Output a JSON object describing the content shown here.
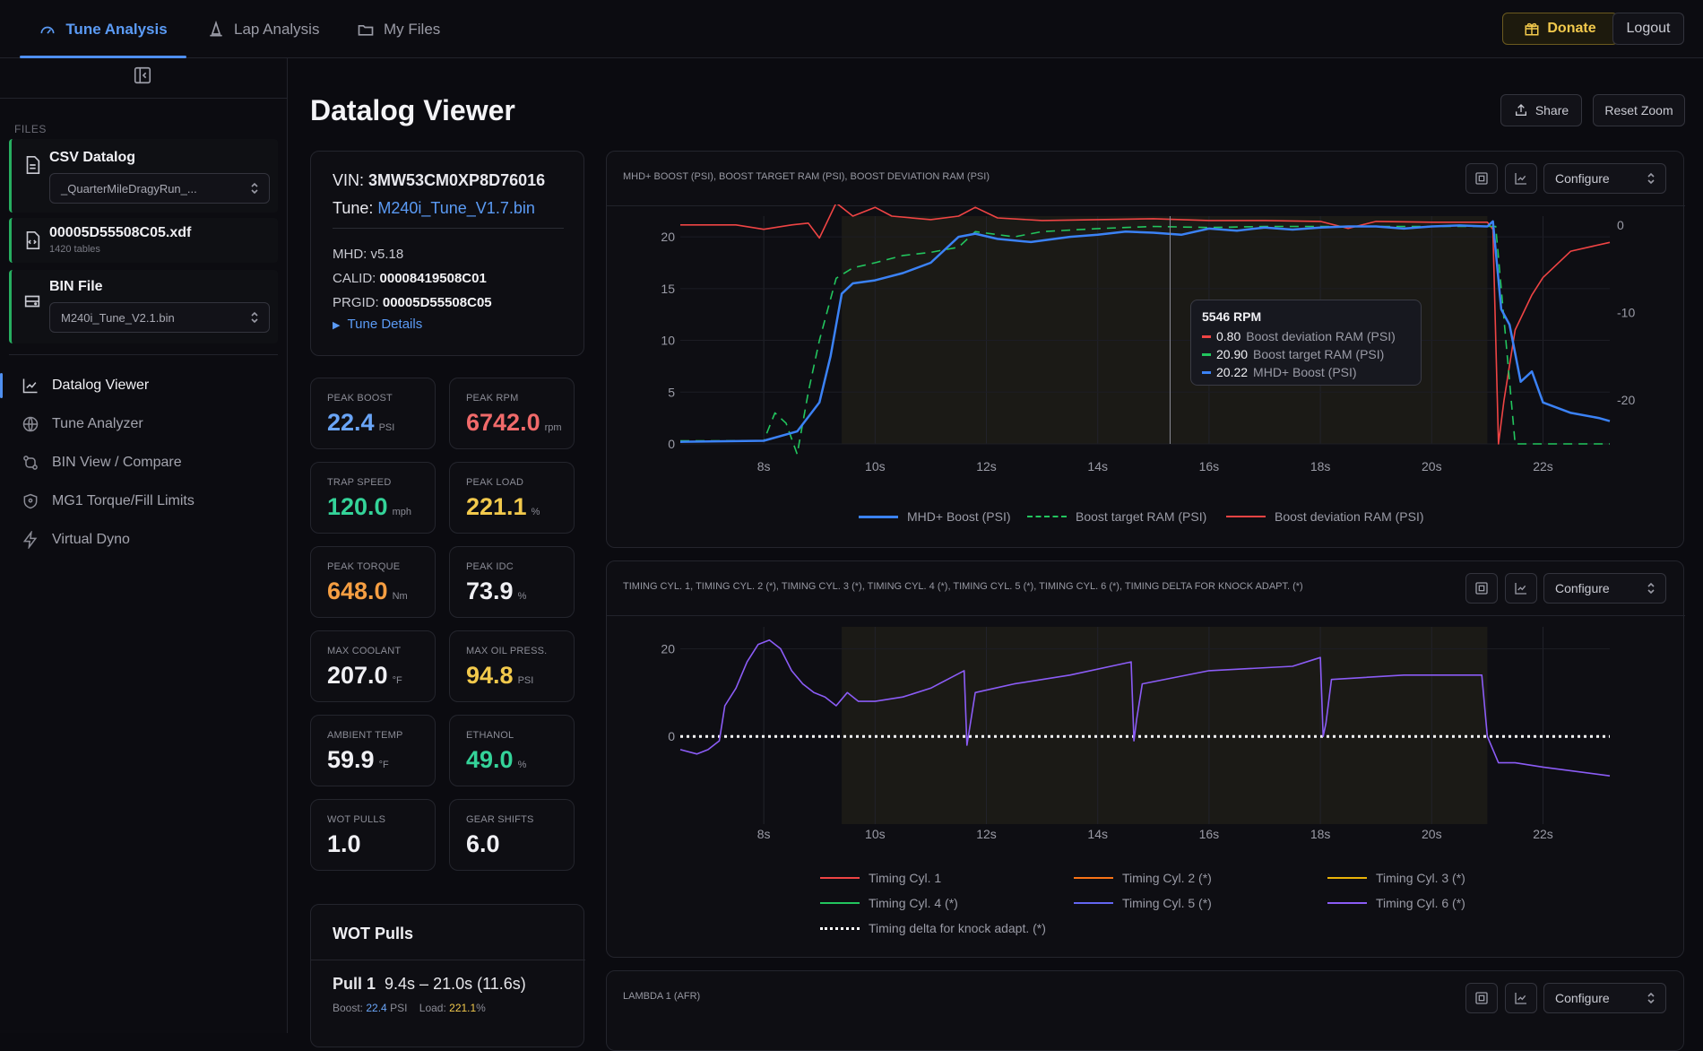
{
  "nav": {
    "tabs": [
      {
        "label": "Tune Analysis",
        "icon": "gauge-icon"
      },
      {
        "label": "Lap Analysis",
        "icon": "cone-icon"
      },
      {
        "label": "My Files",
        "icon": "folder-icon"
      }
    ],
    "donate_label": "Donate",
    "logout_label": "Logout"
  },
  "sidebar": {
    "files_label": "FILES",
    "files": [
      {
        "title": "CSV Datalog",
        "select_value": "_QuarterMileDragyRun_..."
      },
      {
        "title": "00005D55508C05.xdf",
        "subtitle": "1420 tables"
      },
      {
        "title": "BIN File",
        "select_value": "M240i_Tune_V2.1.bin"
      }
    ],
    "menu": [
      {
        "label": "Datalog Viewer",
        "icon": "line-chart-icon"
      },
      {
        "label": "Tune Analyzer",
        "icon": "globe-icon"
      },
      {
        "label": "BIN View / Compare",
        "icon": "compare-icon"
      },
      {
        "label": "MG1 Torque/Fill Limits",
        "icon": "shield-icon"
      },
      {
        "label": "Virtual Dyno",
        "icon": "lightning-icon"
      }
    ]
  },
  "main": {
    "title": "Datalog Viewer",
    "share_label": "Share",
    "reset_zoom_label": "Reset Zoom"
  },
  "info": {
    "vin_label": "VIN:",
    "vin": "3MW53CM0XP8D76016",
    "tune_label": "Tune:",
    "tune_file": "M240i_Tune_V1.7.bin",
    "mhd_label": "MHD:",
    "mhd": "v5.18",
    "calid_label": "CALID:",
    "calid": "00008419508C01",
    "prgid_label": "PRGID:",
    "prgid": "00005D55508C05",
    "details_label": "Tune Details"
  },
  "stats": [
    {
      "label": "PEAK BOOST",
      "value": "22.4",
      "unit": "PSI",
      "color": "#6aa5f7"
    },
    {
      "label": "PEAK RPM",
      "value": "6742.0",
      "unit": "rpm",
      "color": "#f06a6a"
    },
    {
      "label": "TRAP SPEED",
      "value": "120.0",
      "unit": "mph",
      "color": "#34d399"
    },
    {
      "label": "PEAK LOAD",
      "value": "221.1",
      "unit": "%",
      "color": "#f2c94c"
    },
    {
      "label": "PEAK TORQUE",
      "value": "648.0",
      "unit": "Nm",
      "color": "#f59e42"
    },
    {
      "label": "PEAK IDC",
      "value": "73.9",
      "unit": "%",
      "color": "#f0f0f4"
    },
    {
      "label": "MAX COOLANT",
      "value": "207.0",
      "unit": "°F",
      "color": "#f0f0f4"
    },
    {
      "label": "MAX OIL PRESS.",
      "value": "94.8",
      "unit": "PSI",
      "color": "#f2c94c"
    },
    {
      "label": "AMBIENT TEMP",
      "value": "59.9",
      "unit": "°F",
      "color": "#f0f0f4"
    },
    {
      "label": "ETHANOL",
      "value": "49.0",
      "unit": "%",
      "color": "#34d399"
    },
    {
      "label": "WOT PULLS",
      "value": "1.0",
      "unit": "",
      "color": "#f0f0f4"
    },
    {
      "label": "GEAR SHIFTS",
      "value": "6.0",
      "unit": "",
      "color": "#f0f0f4"
    }
  ],
  "wot": {
    "title": "WOT Pulls",
    "pull_name": "Pull 1",
    "pull_range": "9.4s – 21.0s (11.6s)",
    "boost_label": "Boost:",
    "boost_value": "22.4",
    "boost_unit": "PSI",
    "load_label": "Load:",
    "load_value": "221.1",
    "load_unit": "%"
  },
  "charts": {
    "configure_label": "Configure",
    "boost_title": "MHD+ Boost (PSI), Boost target RAM (PSI), Boost deviation RAM (PSI)",
    "timing_title": "Timing Cyl. 1, Timing Cyl. 2 (*), Timing Cyl. 3 (*), Timing Cyl. 4 (*), Timing Cyl. 5 (*), Timing Cyl. 6 (*), Timing delta for knock adapt. (*)",
    "lambda_title": "Lambda 1 (AFR)",
    "tooltip": {
      "title": "5546 RPM",
      "rows": [
        {
          "value": "0.80",
          "label": "Boost deviation RAM (PSI)",
          "color": "#ef4444"
        },
        {
          "value": "20.90",
          "label": "Boost target RAM (PSI)",
          "color": "#22c55e"
        },
        {
          "value": "20.22",
          "label": "MHD+ Boost (PSI)",
          "color": "#3b82f6"
        }
      ]
    }
  },
  "chart_data": [
    {
      "type": "line",
      "title": "MHD+ Boost (PSI), Boost target RAM (PSI), Boost deviation RAM (PSI)",
      "x_ticks": [
        "8s",
        "10s",
        "12s",
        "14s",
        "16s",
        "18s",
        "20s",
        "22s"
      ],
      "y_ticks_left": [
        "0",
        "5",
        "10",
        "15",
        "20"
      ],
      "y_ticks_right": [
        "0",
        "-10",
        "-20"
      ],
      "ylim_left": [
        0,
        22
      ],
      "ylim_right": [
        -25,
        1
      ],
      "xlim": [
        6.5,
        23.2
      ],
      "series": [
        {
          "name": "MHD+ Boost (PSI)",
          "color": "#3b82f6",
          "axis": "left",
          "x": [
            6.5,
            8.0,
            8.6,
            9.0,
            9.2,
            9.4,
            9.6,
            10.0,
            10.5,
            11.0,
            11.5,
            11.8,
            12.2,
            12.8,
            13.5,
            14.0,
            14.5,
            15.0,
            15.5,
            16.0,
            16.5,
            17.0,
            17.5,
            18.0,
            18.5,
            19.0,
            19.5,
            20.0,
            20.5,
            21.0,
            21.1,
            21.25,
            21.4,
            21.6,
            21.8,
            22.0,
            22.5,
            23.0,
            23.2
          ],
          "y": [
            0.2,
            0.3,
            1.2,
            4.0,
            8.5,
            14.5,
            15.5,
            15.8,
            16.5,
            17.5,
            20.0,
            20.3,
            19.8,
            19.5,
            20.0,
            20.2,
            20.5,
            20.4,
            20.2,
            20.8,
            20.6,
            20.9,
            20.7,
            20.9,
            21.0,
            21.0,
            20.8,
            21.0,
            21.1,
            21.0,
            21.5,
            13.0,
            11.5,
            6.0,
            7.0,
            4.0,
            3.0,
            2.5,
            2.2
          ]
        },
        {
          "name": "Boost target RAM (PSI)",
          "color": "#22c55e",
          "axis": "left",
          "dashed": true,
          "x": [
            6.5,
            8.0,
            8.2,
            8.4,
            8.6,
            8.8,
            9.0,
            9.3,
            9.6,
            10.0,
            10.5,
            11.0,
            11.5,
            11.8,
            12.5,
            13.0,
            14.0,
            15.0,
            16.0,
            17.0,
            18.0,
            19.0,
            20.0,
            21.0,
            21.15,
            21.25,
            21.5,
            22.0,
            23.2
          ],
          "y": [
            0.3,
            0.3,
            3.0,
            2.0,
            -1.0,
            5.0,
            10.0,
            16.0,
            17.0,
            17.5,
            18.2,
            18.5,
            19.0,
            20.5,
            20.0,
            20.5,
            20.8,
            21.0,
            20.9,
            21.0,
            21.0,
            21.0,
            21.0,
            21.0,
            21.0,
            15.0,
            0.0,
            0.0,
            0.0
          ]
        },
        {
          "name": "Boost deviation RAM (PSI)",
          "color": "#ef4444",
          "axis": "right",
          "x": [
            6.5,
            7.5,
            8.0,
            8.5,
            8.8,
            9.0,
            9.3,
            9.6,
            10.0,
            10.3,
            11.0,
            11.5,
            11.8,
            12.2,
            13.0,
            14.0,
            15.0,
            16.0,
            17.0,
            18.0,
            18.5,
            19.0,
            20.0,
            21.0,
            21.1,
            21.2,
            21.3,
            21.5,
            21.8,
            22.0,
            22.5,
            23.2
          ],
          "y": [
            0.0,
            0.0,
            -0.5,
            0.0,
            0.2,
            -1.5,
            2.5,
            1.0,
            2.0,
            1.0,
            0.6,
            1.0,
            2.0,
            0.8,
            0.5,
            0.6,
            0.7,
            0.5,
            0.5,
            0.4,
            -0.4,
            0.4,
            0.3,
            0.3,
            -0.5,
            -25.0,
            -20.0,
            -12.0,
            -8.0,
            -6.0,
            -3.0,
            -2.0
          ]
        }
      ],
      "tooltip": {
        "x": 15.3,
        "title": "5546 RPM",
        "values": [
          0.8,
          20.9,
          20.22
        ]
      }
    },
    {
      "type": "line",
      "title": "Timing Cyl. 1, Timing Cyl. 2 (*), Timing Cyl. 3 (*), Timing Cyl. 4 (*), Timing Cyl. 5 (*), Timing Cyl. 6 (*), Timing delta for knock adapt. (*)",
      "x_ticks": [
        "8s",
        "10s",
        "12s",
        "14s",
        "16s",
        "18s",
        "20s",
        "22s"
      ],
      "y_ticks": [
        "0",
        "20"
      ],
      "ylim": [
        -20,
        25
      ],
      "xlim": [
        6.5,
        23.2
      ],
      "series": [
        {
          "name": "Timing Cyl. 1",
          "color": "#ef4444"
        },
        {
          "name": "Timing Cyl. 2 (*)",
          "color": "#f97316"
        },
        {
          "name": "Timing Cyl. 3 (*)",
          "color": "#eab308"
        },
        {
          "name": "Timing Cyl. 4 (*)",
          "color": "#22c55e"
        },
        {
          "name": "Timing Cyl. 5 (*)",
          "color": "#6366f1"
        },
        {
          "name": "Timing Cyl. 6 (*)",
          "color": "#8b5cf6",
          "x": [
            6.5,
            6.8,
            7.0,
            7.2,
            7.3,
            7.5,
            7.7,
            7.9,
            8.1,
            8.3,
            8.5,
            8.7,
            8.9,
            9.1,
            9.3,
            9.5,
            9.7,
            10.0,
            10.5,
            11.0,
            11.6,
            11.65,
            11.7,
            11.8,
            12.5,
            13.5,
            14.6,
            14.65,
            14.7,
            14.8,
            16.0,
            17.5,
            18.0,
            18.05,
            18.1,
            18.2,
            19.5,
            20.9,
            21.0,
            21.2,
            21.5,
            22.0,
            23.2
          ],
          "y": [
            -3,
            -4,
            -3,
            -1,
            7,
            11,
            17,
            21,
            22,
            20,
            15,
            12,
            10,
            9,
            7,
            10,
            8,
            8,
            9,
            11,
            15,
            -2,
            2,
            10,
            12,
            14,
            17,
            -1,
            4,
            12,
            15,
            16,
            18,
            0,
            3,
            13,
            14,
            14,
            0,
            -6,
            -6,
            -7,
            -9
          ]
        },
        {
          "name": "Timing delta for knock adapt. (*)",
          "color": "#ffffff",
          "dotted": true,
          "x": [
            6.5,
            23.2
          ],
          "y": [
            0,
            0
          ]
        }
      ]
    }
  ]
}
